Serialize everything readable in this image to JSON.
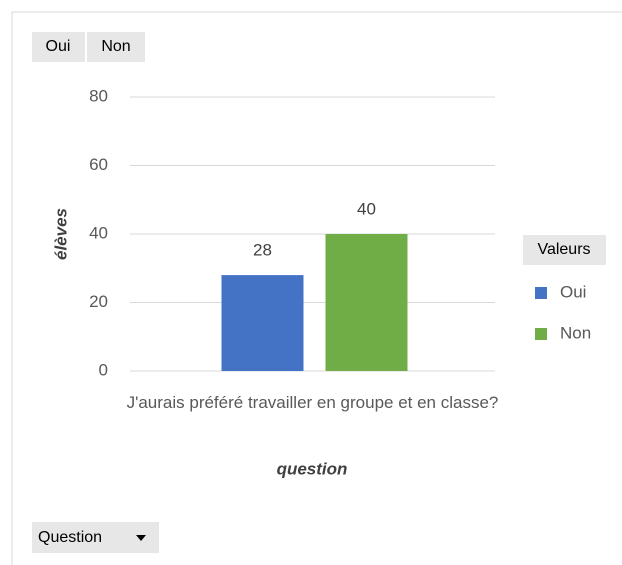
{
  "chart_data": {
    "type": "bar",
    "value_buttons": [
      "Oui",
      "Non"
    ],
    "axis_field_button": "Question",
    "ylabel": "élèves",
    "xlabel": "question",
    "legend_title": "Valeurs",
    "categories": [
      "J'aurais préféré travailler en groupe et en classe?"
    ],
    "series": [
      {
        "name": "Oui",
        "color": "#4472c4",
        "values": [
          28
        ]
      },
      {
        "name": "Non",
        "color": "#70ad47",
        "values": [
          40
        ]
      }
    ],
    "ylim": [
      0,
      80
    ],
    "yticks": [
      0,
      20,
      40,
      60,
      80
    ],
    "grid": true,
    "legend": "right"
  }
}
